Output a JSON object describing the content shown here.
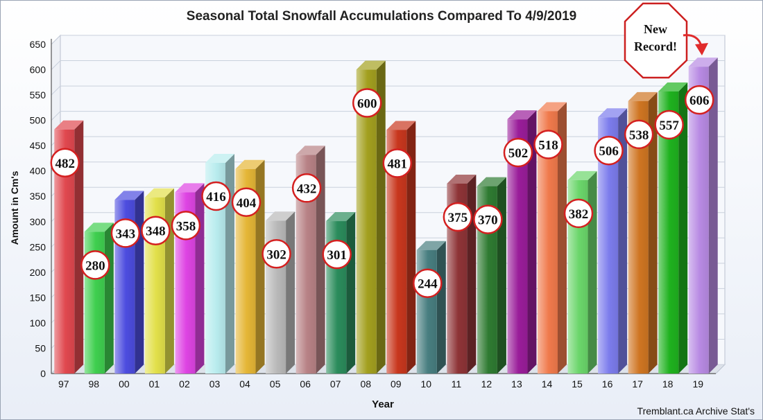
{
  "chart_data": {
    "type": "bar",
    "title": "Seasonal Total Snowfall Accumulations Compared To 4/9/2019",
    "xlabel": "Year",
    "ylabel": "Amount in Cm's",
    "ylim": [
      0,
      650
    ],
    "yticks": [
      0,
      50,
      100,
      150,
      200,
      250,
      300,
      350,
      400,
      450,
      500,
      550,
      600,
      650
    ],
    "grid": true,
    "categories": [
      "97",
      "98",
      "00",
      "01",
      "02",
      "03",
      "04",
      "05",
      "06",
      "07",
      "08",
      "09",
      "10",
      "11",
      "12",
      "13",
      "14",
      "15",
      "16",
      "17",
      "18",
      "19"
    ],
    "values": [
      482,
      280,
      343,
      348,
      358,
      416,
      404,
      302,
      432,
      301,
      600,
      481,
      244,
      375,
      370,
      502,
      518,
      382,
      506,
      538,
      557,
      606
    ],
    "colors": [
      "#e0484f",
      "#3fcf4f",
      "#4d4ddf",
      "#e2e04a",
      "#de44e3",
      "#b8ecee",
      "#e5b636",
      "#b9b9b9",
      "#b88286",
      "#2b8c5c",
      "#a3a01f",
      "#c8371e",
      "#487e80",
      "#8e3437",
      "#2f7b32",
      "#9a1d9a",
      "#f07a4c",
      "#6bd66b",
      "#7c7cec",
      "#cf7522",
      "#1fb21f",
      "#b88ae3"
    ],
    "annotation": {
      "text_line1": "New",
      "text_line2": "Record!",
      "color": "#e02b2b"
    },
    "credit": "Tremblant.ca Archive Stat's"
  }
}
